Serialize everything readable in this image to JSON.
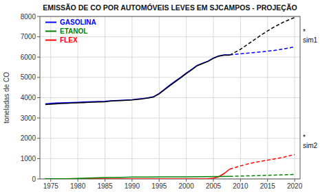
{
  "chart_data": {
    "type": "line",
    "title": "EMISSÃO DE CO POR AUTOMÓVEIS LEVES EM SJCAMPOS - PROJEÇÃO",
    "ylabel": "toneladas de CO",
    "xlim": [
      1973,
      2021
    ],
    "ylim": [
      0,
      8000
    ],
    "xticks": [
      1975,
      1980,
      1985,
      1990,
      1995,
      2000,
      2005,
      2010,
      2015,
      2020
    ],
    "yticks": [
      0,
      1000,
      2000,
      3000,
      4000,
      5000,
      6000,
      7000,
      8000
    ],
    "grid": true,
    "legend": "upper left",
    "series": [
      {
        "color": "black",
        "line_style": "solid",
        "x": [
          1974,
          1975,
          1976,
          1977,
          1978,
          1979,
          1980,
          1981,
          1982,
          1983,
          1984,
          1985,
          1986,
          1987,
          1988,
          1989,
          1990,
          1991,
          1992,
          1993,
          1994,
          1995,
          1996,
          1997,
          1998,
          1999,
          2000,
          2001,
          2002,
          2003,
          2004,
          2005,
          2006,
          2007,
          2008
        ],
        "values": [
          3660,
          3680,
          3700,
          3715,
          3725,
          3738,
          3748,
          3758,
          3768,
          3778,
          3790,
          3800,
          3830,
          3848,
          3860,
          3872,
          3888,
          3915,
          3945,
          3985,
          4035,
          4190,
          4390,
          4595,
          4790,
          4985,
          5185,
          5375,
          5570,
          5680,
          5785,
          5935,
          6045,
          6095,
          6095
        ]
      },
      {
        "color": "black",
        "line_style": "dashed",
        "x": [
          2008,
          2010,
          2012,
          2014,
          2016,
          2018,
          2020
        ],
        "values": [
          6095,
          6380,
          6750,
          7120,
          7450,
          7730,
          7950
        ]
      },
      {
        "name": "GASOLINA",
        "color": "blue",
        "line_style": "solid",
        "x": [
          1974,
          1975,
          1976,
          1977,
          1978,
          1979,
          1980,
          1981,
          1982,
          1983,
          1984,
          1985,
          1986,
          1987,
          1988,
          1989,
          1990,
          1991,
          1992,
          1993,
          1994,
          1995,
          1996,
          1997,
          1998,
          1999,
          2000,
          2001,
          2002,
          2003,
          2004,
          2005,
          2006,
          2007,
          2008
        ],
        "values": [
          3700,
          3720,
          3735,
          3745,
          3755,
          3765,
          3775,
          3785,
          3795,
          3805,
          3815,
          3825,
          3845,
          3860,
          3875,
          3885,
          3900,
          3930,
          3960,
          4000,
          4055,
          4210,
          4420,
          4630,
          4820,
          5010,
          5210,
          5400,
          5590,
          5700,
          5800,
          5950,
          6060,
          6110,
          6110
        ]
      },
      {
        "color": "blue",
        "line_style": "dashed",
        "x": [
          2008,
          2010,
          2012,
          2014,
          2016,
          2018,
          2020
        ],
        "values": [
          6110,
          6160,
          6210,
          6260,
          6320,
          6400,
          6500
        ]
      },
      {
        "name": "ETANOL",
        "color": "green",
        "line_style": "solid",
        "x": [
          1974,
          1976,
          1978,
          1980,
          1982,
          1985,
          1988,
          1990,
          1993,
          1996,
          2000,
          2003,
          2006,
          2008
        ],
        "values": [
          5,
          8,
          12,
          22,
          40,
          65,
          80,
          90,
          95,
          100,
          105,
          108,
          115,
          125
        ]
      },
      {
        "color": "green",
        "line_style": "dashed",
        "x": [
          2008,
          2012,
          2016,
          2020
        ],
        "values": [
          125,
          155,
          185,
          220
        ]
      },
      {
        "name": "FLEX",
        "color": "red",
        "line_style": "solid",
        "x": [
          1974,
          1980,
          1990,
          2000,
          2003,
          2004,
          2005,
          2006,
          2007,
          2008
        ],
        "values": [
          0,
          0,
          0,
          0,
          0,
          8,
          35,
          110,
          270,
          480
        ]
      },
      {
        "color": "red",
        "line_style": "dashed",
        "x": [
          2008,
          2010,
          2012,
          2014,
          2016,
          2018,
          2020
        ],
        "values": [
          480,
          640,
          780,
          880,
          970,
          1070,
          1200
        ]
      }
    ],
    "annotations": [
      {
        "text": "*\nsim1"
      },
      {
        "text": "*\nsim2"
      }
    ]
  }
}
